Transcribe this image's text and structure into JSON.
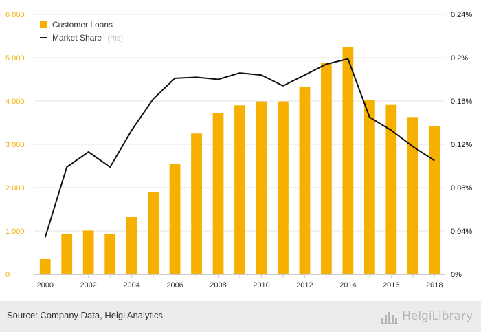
{
  "chart_data": {
    "type": "bar",
    "categories": [
      "2000",
      "2001",
      "2002",
      "2003",
      "2004",
      "2005",
      "2006",
      "2007",
      "2008",
      "2009",
      "2010",
      "2011",
      "2012",
      "2013",
      "2014",
      "2015",
      "2016",
      "2017",
      "2018"
    ],
    "x_tick_labels": [
      "2000",
      "2002",
      "2004",
      "2006",
      "2008",
      "2010",
      "2012",
      "2014",
      "2016",
      "2018"
    ],
    "series": [
      {
        "name": "Customer Loans",
        "type": "bar",
        "axis": "left",
        "color": "#f5b000",
        "values": [
          350,
          930,
          1010,
          930,
          1320,
          1900,
          2550,
          3250,
          3720,
          3900,
          3990,
          3990,
          4330,
          4880,
          5240,
          4020,
          3910,
          3630,
          3420
        ]
      },
      {
        "name": "Market Share",
        "name_suffix": "(rhs)",
        "type": "line",
        "axis": "right",
        "color": "#111111",
        "values": [
          0.034,
          0.099,
          0.113,
          0.099,
          0.133,
          0.162,
          0.181,
          0.182,
          0.18,
          0.186,
          0.184,
          0.174,
          0.184,
          0.194,
          0.199,
          0.145,
          0.133,
          0.118,
          0.105
        ]
      }
    ],
    "y_left": {
      "ylim": [
        0,
        6000
      ],
      "ticks": [
        0,
        1000,
        2000,
        3000,
        4000,
        5000,
        6000
      ],
      "tick_labels": [
        "0",
        "1 000",
        "2 000",
        "3 000",
        "4 000",
        "5 000",
        "6 000"
      ],
      "color": "#f5b000"
    },
    "y_right": {
      "ylim": [
        0,
        0.24
      ],
      "ticks": [
        0,
        0.04,
        0.08,
        0.12,
        0.16,
        0.2,
        0.24
      ],
      "tick_labels": [
        "0%",
        "0.04%",
        "0.08%",
        "0.12%",
        "0.16%",
        "0.2%",
        "0.24%"
      ],
      "color": "#111111"
    },
    "grid": true,
    "legend_position": "top-left"
  },
  "footer": {
    "source": "Source: Company Data, Helgi Analytics",
    "brand": "HelgiLibrary",
    "brand_icon": "helgi-library-logo-icon"
  }
}
